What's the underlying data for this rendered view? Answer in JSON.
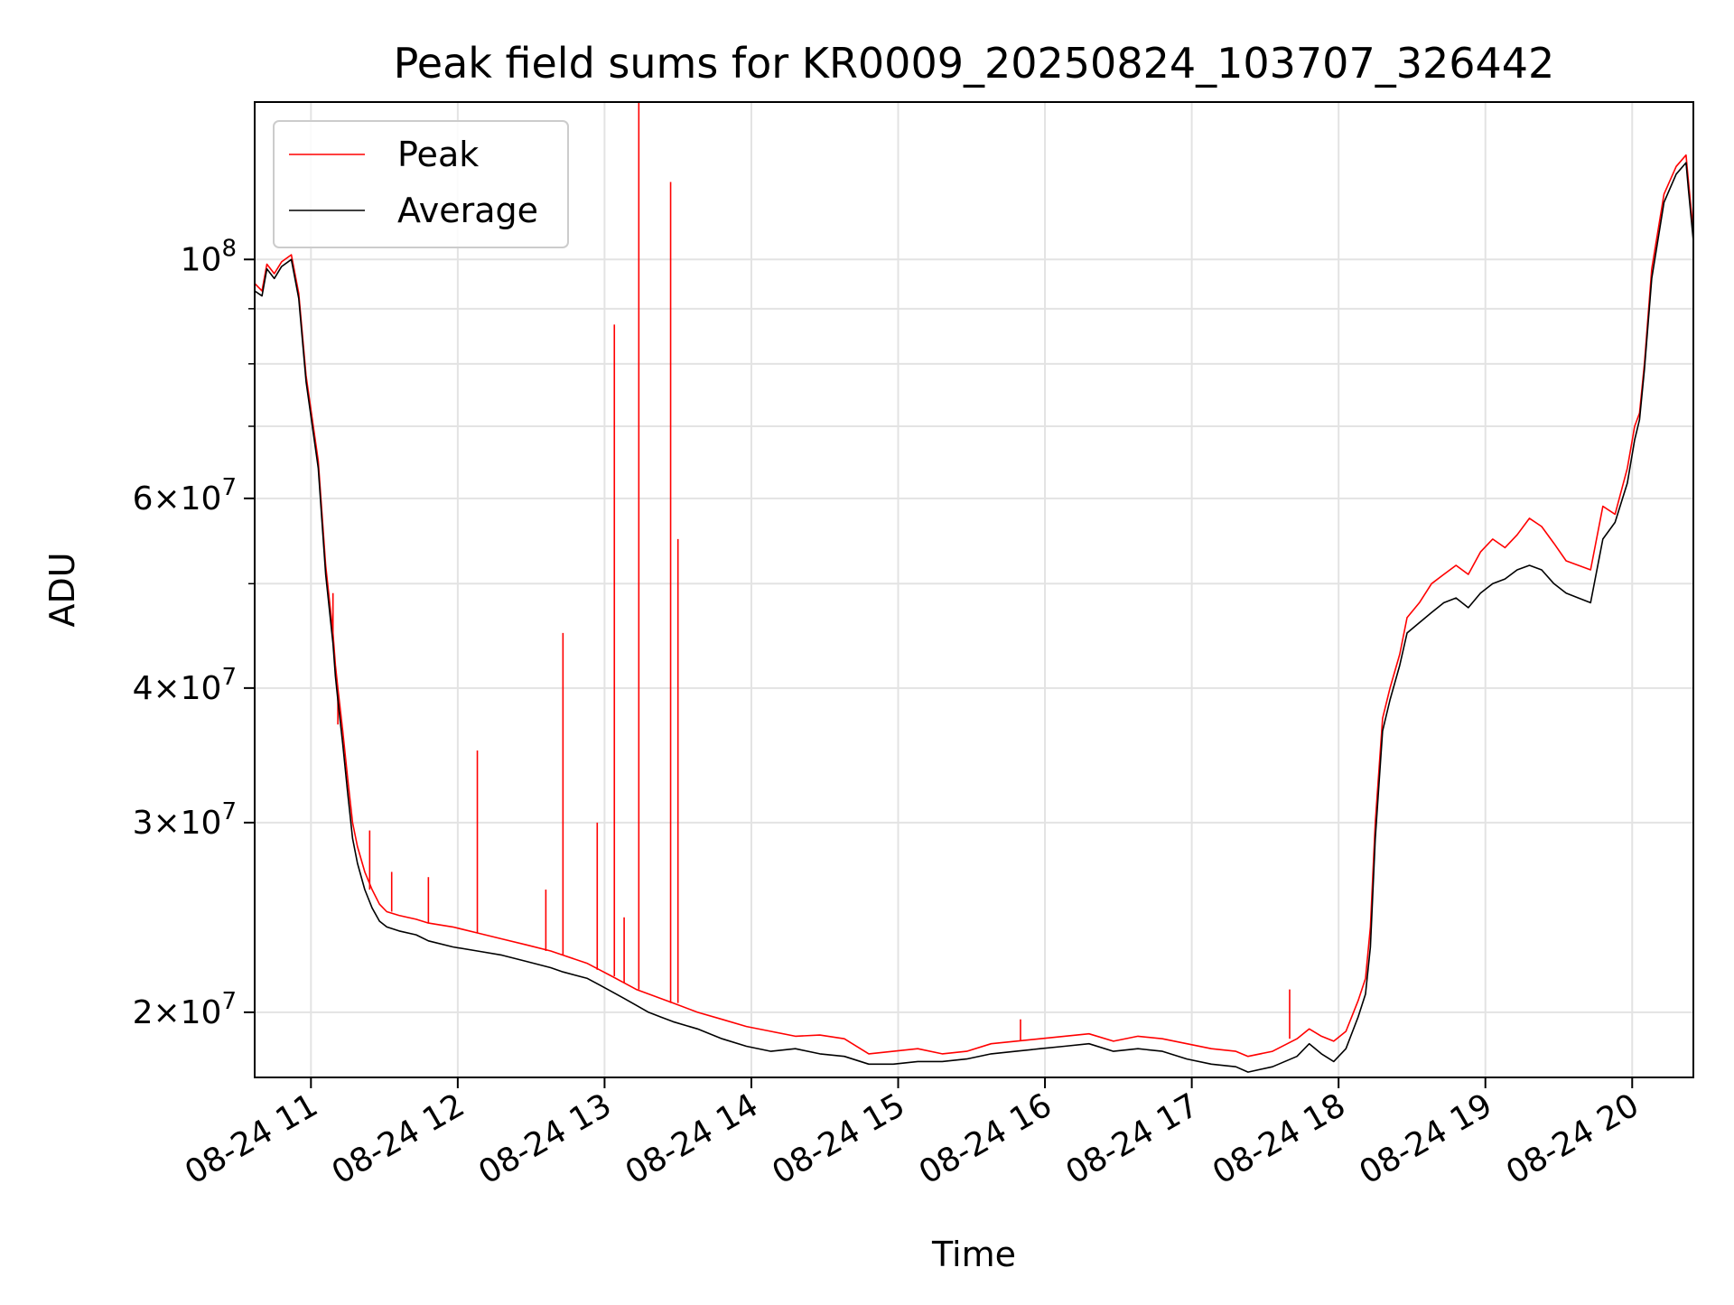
{
  "chart_data": {
    "type": "line",
    "title": "Peak field sums for KR0009_20250824_103707_326442",
    "xlabel": "Time",
    "ylabel": "ADU",
    "yscale": "log",
    "grid": true,
    "legend_position": "top-left",
    "xlim": [
      "2025-08-24T10:37",
      "2025-08-24T20:25"
    ],
    "ylim": [
      17400000,
      140000000
    ],
    "x_ticks": [
      {
        "value": "2025-08-24T11:00",
        "label": "08-24 11"
      },
      {
        "value": "2025-08-24T12:00",
        "label": "08-24 12"
      },
      {
        "value": "2025-08-24T13:00",
        "label": "08-24 13"
      },
      {
        "value": "2025-08-24T14:00",
        "label": "08-24 14"
      },
      {
        "value": "2025-08-24T15:00",
        "label": "08-24 15"
      },
      {
        "value": "2025-08-24T16:00",
        "label": "08-24 16"
      },
      {
        "value": "2025-08-24T17:00",
        "label": "08-24 17"
      },
      {
        "value": "2025-08-24T18:00",
        "label": "08-24 18"
      },
      {
        "value": "2025-08-24T19:00",
        "label": "08-24 19"
      },
      {
        "value": "2025-08-24T20:00",
        "label": "08-24 20"
      }
    ],
    "y_ticks": [
      {
        "value": 20000000,
        "mantissa": "2",
        "exponent": "7"
      },
      {
        "value": 30000000,
        "mantissa": "3",
        "exponent": "7"
      },
      {
        "value": 40000000,
        "mantissa": "4",
        "exponent": "7"
      },
      {
        "value": 60000000,
        "mantissa": "6",
        "exponent": "7"
      },
      {
        "value": 100000000,
        "mantissa": "",
        "exponent": "8"
      }
    ],
    "y_minor_ticks": [
      50000000,
      70000000,
      80000000,
      90000000
    ],
    "series": [
      {
        "name": "Peak",
        "color": "#ff0000",
        "x": [
          "2025-08-24T10:37",
          "2025-08-24T10:40",
          "2025-08-24T10:42",
          "2025-08-24T10:45",
          "2025-08-24T10:48",
          "2025-08-24T10:52",
          "2025-08-24T10:55",
          "2025-08-24T10:58",
          "2025-08-24T11:03",
          "2025-08-24T11:06",
          "2025-08-24T11:09",
          "2025-08-24T11:10",
          "2025-08-24T11:11",
          "2025-08-24T11:13",
          "2025-08-24T11:15",
          "2025-08-24T11:17",
          "2025-08-24T11:19",
          "2025-08-24T11:22",
          "2025-08-24T11:25",
          "2025-08-24T11:28",
          "2025-08-24T11:31",
          "2025-08-24T11:36",
          "2025-08-24T11:43",
          "2025-08-24T11:48",
          "2025-08-24T11:58",
          "2025-08-24T12:08",
          "2025-08-24T12:18",
          "2025-08-24T12:28",
          "2025-08-24T12:38",
          "2025-08-24T12:43",
          "2025-08-24T12:53",
          "2025-08-24T12:58",
          "2025-08-24T13:03",
          "2025-08-24T13:08",
          "2025-08-24T13:13",
          "2025-08-24T13:18",
          "2025-08-24T13:23",
          "2025-08-24T13:28",
          "2025-08-24T13:38",
          "2025-08-24T13:48",
          "2025-08-24T13:58",
          "2025-08-24T14:08",
          "2025-08-24T14:18",
          "2025-08-24T14:28",
          "2025-08-24T14:38",
          "2025-08-24T14:48",
          "2025-08-24T14:58",
          "2025-08-24T15:08",
          "2025-08-24T15:18",
          "2025-08-24T15:28",
          "2025-08-24T15:38",
          "2025-08-24T15:48",
          "2025-08-24T15:58",
          "2025-08-24T16:08",
          "2025-08-24T16:18",
          "2025-08-24T16:28",
          "2025-08-24T16:38",
          "2025-08-24T16:48",
          "2025-08-24T16:58",
          "2025-08-24T17:08",
          "2025-08-24T17:18",
          "2025-08-24T17:23",
          "2025-08-24T17:33",
          "2025-08-24T17:43",
          "2025-08-24T17:48",
          "2025-08-24T17:53",
          "2025-08-24T17:58",
          "2025-08-24T18:03",
          "2025-08-24T18:08",
          "2025-08-24T18:11",
          "2025-08-24T18:13",
          "2025-08-24T18:15",
          "2025-08-24T18:18",
          "2025-08-24T18:21",
          "2025-08-24T18:25",
          "2025-08-24T18:28",
          "2025-08-24T18:33",
          "2025-08-24T18:38",
          "2025-08-24T18:43",
          "2025-08-24T18:48",
          "2025-08-24T18:53",
          "2025-08-24T18:58",
          "2025-08-24T19:03",
          "2025-08-24T19:08",
          "2025-08-24T19:13",
          "2025-08-24T19:18",
          "2025-08-24T19:23",
          "2025-08-24T19:28",
          "2025-08-24T19:33",
          "2025-08-24T19:38",
          "2025-08-24T19:43",
          "2025-08-24T19:48",
          "2025-08-24T19:53",
          "2025-08-24T19:58",
          "2025-08-24T20:01",
          "2025-08-24T20:03",
          "2025-08-24T20:05",
          "2025-08-24T20:08",
          "2025-08-24T20:13",
          "2025-08-24T20:18",
          "2025-08-24T20:22",
          "2025-08-24T20:23",
          "2025-08-24T20:25"
        ],
        "values": [
          95000000,
          93500000,
          99000000,
          97000000,
          99500000,
          101000000,
          93000000,
          78000000,
          65000000,
          52000000,
          45000000,
          42000000,
          40000000,
          36500000,
          33000000,
          30000000,
          28500000,
          27000000,
          26000000,
          25200000,
          24800000,
          24600000,
          24400000,
          24200000,
          24000000,
          23700000,
          23400000,
          23100000,
          22800000,
          22600000,
          22200000,
          21900000,
          21600000,
          21300000,
          21000000,
          20800000,
          20600000,
          20400000,
          20000000,
          19700000,
          19400000,
          19200000,
          19000000,
          19050000,
          18900000,
          18300000,
          18400000,
          18500000,
          18300000,
          18400000,
          18700000,
          18800000,
          18900000,
          19000000,
          19100000,
          18800000,
          19000000,
          18900000,
          18700000,
          18500000,
          18400000,
          18200000,
          18400000,
          18900000,
          19300000,
          19000000,
          18800000,
          19200000,
          20500000,
          21500000,
          24000000,
          30000000,
          37500000,
          40000000,
          43000000,
          46500000,
          48000000,
          50000000,
          51000000,
          52000000,
          51000000,
          53500000,
          55000000,
          54000000,
          55500000,
          57500000,
          56500000,
          54500000,
          52500000,
          52000000,
          51500000,
          59000000,
          58000000,
          64000000,
          70000000,
          72000000,
          80000000,
          98000000,
          115000000,
          122000000,
          125000000,
          118000000,
          106000000
        ],
        "spikes": [
          {
            "x": "2025-08-24T11:09",
            "value": 49000000
          },
          {
            "x": "2025-08-24T11:11",
            "value": 37000000
          },
          {
            "x": "2025-08-24T11:24",
            "value": 29500000
          },
          {
            "x": "2025-08-24T11:33",
            "value": 27000000
          },
          {
            "x": "2025-08-24T11:48",
            "value": 26700000
          },
          {
            "x": "2025-08-24T12:08",
            "value": 35000000
          },
          {
            "x": "2025-08-24T12:36",
            "value": 26000000
          },
          {
            "x": "2025-08-24T12:43",
            "value": 45000000
          },
          {
            "x": "2025-08-24T12:57",
            "value": 30000000
          },
          {
            "x": "2025-08-24T13:04",
            "value": 87000000
          },
          {
            "x": "2025-08-24T13:08",
            "value": 24500000
          },
          {
            "x": "2025-08-24T13:14",
            "value": 140000000
          },
          {
            "x": "2025-08-24T13:27",
            "value": 118000000
          },
          {
            "x": "2025-08-24T13:30",
            "value": 55000000
          },
          {
            "x": "2025-08-24T15:50",
            "value": 19700000
          },
          {
            "x": "2025-08-24T17:40",
            "value": 21000000
          }
        ]
      },
      {
        "name": "Average",
        "color": "#000000",
        "x": [
          "2025-08-24T10:37",
          "2025-08-24T10:40",
          "2025-08-24T10:42",
          "2025-08-24T10:45",
          "2025-08-24T10:48",
          "2025-08-24T10:52",
          "2025-08-24T10:55",
          "2025-08-24T10:58",
          "2025-08-24T11:03",
          "2025-08-24T11:06",
          "2025-08-24T11:09",
          "2025-08-24T11:10",
          "2025-08-24T11:11",
          "2025-08-24T11:13",
          "2025-08-24T11:15",
          "2025-08-24T11:17",
          "2025-08-24T11:19",
          "2025-08-24T11:22",
          "2025-08-24T11:25",
          "2025-08-24T11:28",
          "2025-08-24T11:31",
          "2025-08-24T11:36",
          "2025-08-24T11:43",
          "2025-08-24T11:48",
          "2025-08-24T11:58",
          "2025-08-24T12:08",
          "2025-08-24T12:18",
          "2025-08-24T12:28",
          "2025-08-24T12:38",
          "2025-08-24T12:43",
          "2025-08-24T12:53",
          "2025-08-24T12:58",
          "2025-08-24T13:03",
          "2025-08-24T13:08",
          "2025-08-24T13:13",
          "2025-08-24T13:18",
          "2025-08-24T13:23",
          "2025-08-24T13:28",
          "2025-08-24T13:38",
          "2025-08-24T13:48",
          "2025-08-24T13:58",
          "2025-08-24T14:08",
          "2025-08-24T14:18",
          "2025-08-24T14:28",
          "2025-08-24T14:38",
          "2025-08-24T14:48",
          "2025-08-24T14:58",
          "2025-08-24T15:08",
          "2025-08-24T15:18",
          "2025-08-24T15:28",
          "2025-08-24T15:38",
          "2025-08-24T15:48",
          "2025-08-24T15:58",
          "2025-08-24T16:08",
          "2025-08-24T16:18",
          "2025-08-24T16:28",
          "2025-08-24T16:38",
          "2025-08-24T16:48",
          "2025-08-24T16:58",
          "2025-08-24T17:08",
          "2025-08-24T17:18",
          "2025-08-24T17:23",
          "2025-08-24T17:33",
          "2025-08-24T17:43",
          "2025-08-24T17:48",
          "2025-08-24T17:53",
          "2025-08-24T17:58",
          "2025-08-24T18:03",
          "2025-08-24T18:08",
          "2025-08-24T18:11",
          "2025-08-24T18:13",
          "2025-08-24T18:15",
          "2025-08-24T18:18",
          "2025-08-24T18:21",
          "2025-08-24T18:25",
          "2025-08-24T18:28",
          "2025-08-24T18:33",
          "2025-08-24T18:38",
          "2025-08-24T18:43",
          "2025-08-24T18:48",
          "2025-08-24T18:53",
          "2025-08-24T18:58",
          "2025-08-24T19:03",
          "2025-08-24T19:08",
          "2025-08-24T19:13",
          "2025-08-24T19:18",
          "2025-08-24T19:23",
          "2025-08-24T19:28",
          "2025-08-24T19:33",
          "2025-08-24T19:38",
          "2025-08-24T19:43",
          "2025-08-24T19:48",
          "2025-08-24T19:53",
          "2025-08-24T19:58",
          "2025-08-24T20:01",
          "2025-08-24T20:03",
          "2025-08-24T20:05",
          "2025-08-24T20:08",
          "2025-08-24T20:13",
          "2025-08-24T20:18",
          "2025-08-24T20:22",
          "2025-08-24T20:23",
          "2025-08-24T20:25"
        ],
        "values": [
          93500000,
          92500000,
          98000000,
          96000000,
          98500000,
          100000000,
          92000000,
          77000000,
          64000000,
          51000000,
          44000000,
          41000000,
          39000000,
          35500000,
          32000000,
          29000000,
          27500000,
          26000000,
          25000000,
          24300000,
          24000000,
          23800000,
          23600000,
          23300000,
          23000000,
          22800000,
          22600000,
          22300000,
          22000000,
          21800000,
          21500000,
          21200000,
          20900000,
          20600000,
          20300000,
          20000000,
          19800000,
          19600000,
          19300000,
          18900000,
          18600000,
          18400000,
          18500000,
          18300000,
          18200000,
          17900000,
          17900000,
          18000000,
          18000000,
          18100000,
          18300000,
          18400000,
          18500000,
          18600000,
          18700000,
          18400000,
          18500000,
          18400000,
          18100000,
          17900000,
          17800000,
          17600000,
          17800000,
          18200000,
          18700000,
          18300000,
          18000000,
          18500000,
          19800000,
          20800000,
          23000000,
          29000000,
          36500000,
          39000000,
          42000000,
          45000000,
          46000000,
          47000000,
          48000000,
          48500000,
          47500000,
          49000000,
          50000000,
          50500000,
          51500000,
          52000000,
          51500000,
          50000000,
          49000000,
          48500000,
          48000000,
          55000000,
          57000000,
          62000000,
          68000000,
          71000000,
          79000000,
          96000000,
          113000000,
          120000000,
          123000000,
          116000000,
          104000000
        ]
      }
    ]
  }
}
